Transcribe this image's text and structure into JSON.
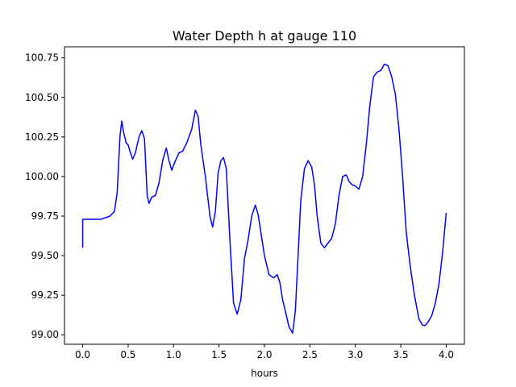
{
  "chart_data": {
    "type": "line",
    "title": "Water Depth h at gauge 110",
    "xlabel": "hours",
    "ylabel": "",
    "xlim": [
      -0.2,
      4.2
    ],
    "ylim": [
      98.94,
      100.82
    ],
    "xticks": [
      0.0,
      0.5,
      1.0,
      1.5,
      2.0,
      2.5,
      3.0,
      3.5,
      4.0
    ],
    "xtick_labels": [
      "0.0",
      "0.5",
      "1.0",
      "1.5",
      "2.0",
      "2.5",
      "3.0",
      "3.5",
      "4.0"
    ],
    "yticks": [
      99.0,
      99.25,
      99.5,
      99.75,
      100.0,
      100.25,
      100.5,
      100.75
    ],
    "ytick_labels": [
      "99.00",
      "99.25",
      "99.50",
      "99.75",
      "100.00",
      "100.25",
      "100.50",
      "100.75"
    ],
    "grid": false,
    "legend": "none",
    "series": [
      {
        "color": "#0000ff",
        "x": [
          0.0,
          0.0,
          0.1,
          0.2,
          0.25,
          0.3,
          0.35,
          0.38,
          0.41,
          0.43,
          0.45,
          0.48,
          0.5,
          0.52,
          0.55,
          0.58,
          0.62,
          0.65,
          0.68,
          0.71,
          0.73,
          0.76,
          0.8,
          0.84,
          0.88,
          0.92,
          0.95,
          0.98,
          1.02,
          1.06,
          1.1,
          1.15,
          1.2,
          1.24,
          1.27,
          1.3,
          1.35,
          1.4,
          1.43,
          1.46,
          1.49,
          1.52,
          1.55,
          1.58,
          1.62,
          1.66,
          1.7,
          1.74,
          1.78,
          1.82,
          1.86,
          1.9,
          1.93,
          1.96,
          2.0,
          2.05,
          2.1,
          2.14,
          2.17,
          2.2,
          2.23,
          2.27,
          2.31,
          2.34,
          2.37,
          2.4,
          2.44,
          2.48,
          2.52,
          2.55,
          2.58,
          2.62,
          2.66,
          2.7,
          2.74,
          2.78,
          2.82,
          2.86,
          2.9,
          2.93,
          2.96,
          3.0,
          3.04,
          3.08,
          3.12,
          3.16,
          3.2,
          3.24,
          3.28,
          3.32,
          3.36,
          3.4,
          3.44,
          3.48,
          3.52,
          3.56,
          3.6,
          3.65,
          3.7,
          3.74,
          3.77,
          3.8,
          3.84,
          3.88,
          3.92,
          3.96,
          4.0
        ],
        "y": [
          99.55,
          99.73,
          99.73,
          99.73,
          99.74,
          99.75,
          99.78,
          99.9,
          100.25,
          100.35,
          100.28,
          100.21,
          100.2,
          100.16,
          100.11,
          100.15,
          100.25,
          100.29,
          100.24,
          99.88,
          99.83,
          99.87,
          99.88,
          99.96,
          100.1,
          100.18,
          100.1,
          100.04,
          100.1,
          100.15,
          100.16,
          100.22,
          100.3,
          100.42,
          100.38,
          100.2,
          100.0,
          99.75,
          99.68,
          99.78,
          100.02,
          100.1,
          100.12,
          100.05,
          99.6,
          99.2,
          99.13,
          99.22,
          99.48,
          99.6,
          99.75,
          99.82,
          99.76,
          99.65,
          99.5,
          99.38,
          99.36,
          99.38,
          99.33,
          99.22,
          99.15,
          99.05,
          99.01,
          99.15,
          99.5,
          99.85,
          100.05,
          100.1,
          100.06,
          99.95,
          99.75,
          99.58,
          99.55,
          99.58,
          99.61,
          99.7,
          99.88,
          100.0,
          100.01,
          99.97,
          99.95,
          99.94,
          99.92,
          100.0,
          100.2,
          100.45,
          100.63,
          100.66,
          100.67,
          100.71,
          100.7,
          100.63,
          100.52,
          100.3,
          100.0,
          99.65,
          99.45,
          99.25,
          99.1,
          99.06,
          99.06,
          99.08,
          99.12,
          99.2,
          99.32,
          99.52,
          99.77
        ]
      }
    ]
  }
}
